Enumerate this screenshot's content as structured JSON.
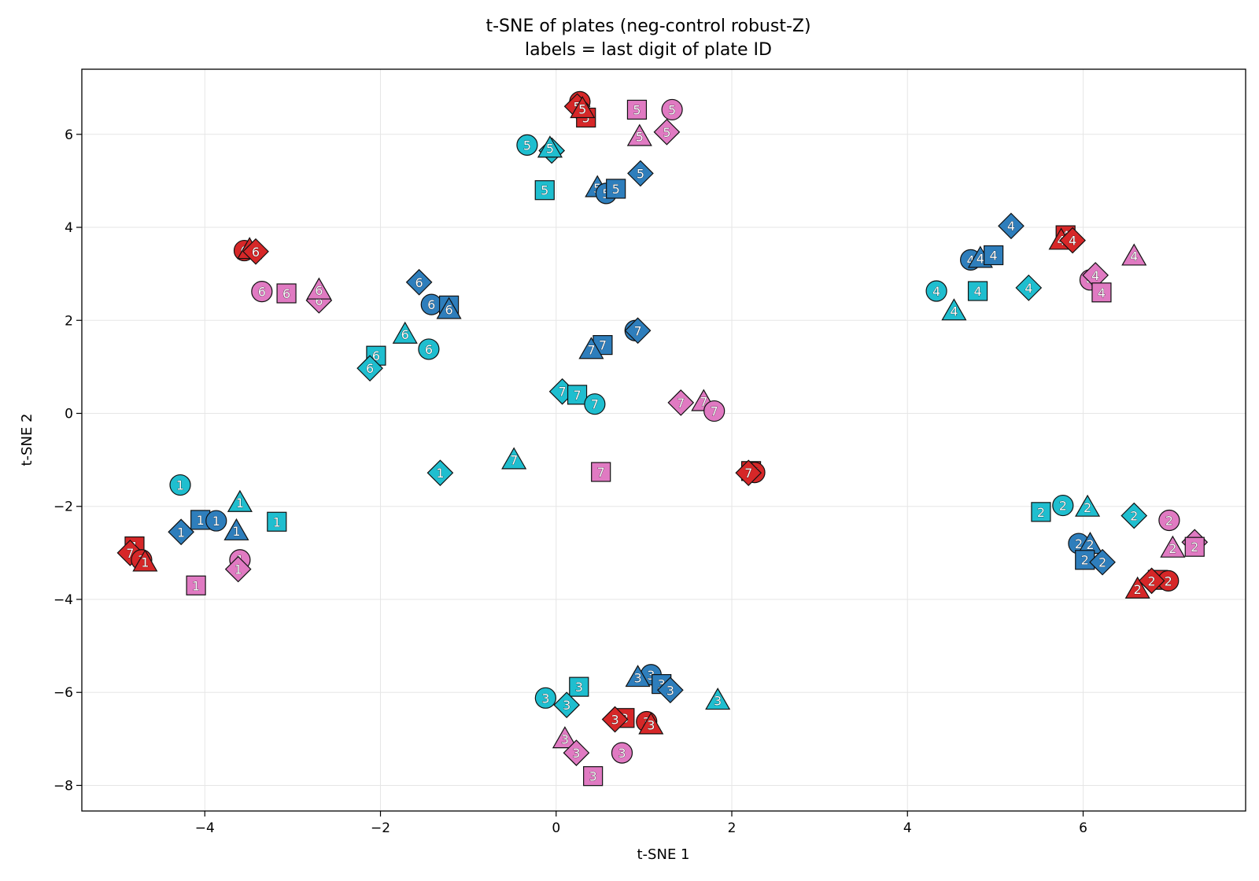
{
  "chart_data": {
    "type": "scatter",
    "title": "t-SNE of plates (neg-control robust-Z)",
    "subtitle": "labels = last digit of plate ID",
    "xlabel": "t-SNE 1",
    "ylabel": "t-SNE 2",
    "xlim": [
      -5.4,
      7.85
    ],
    "ylim": [
      -8.55,
      7.4
    ],
    "xticks": [
      -4,
      -2,
      0,
      2,
      4,
      6
    ],
    "yticks": [
      -8,
      -6,
      -4,
      -2,
      0,
      2,
      4,
      6
    ],
    "grid": true,
    "colors": {
      "red": "#d62728",
      "blue": "#2e7ebc",
      "cyan": "#1fbecf",
      "pink": "#e07ac2"
    },
    "points": [
      {
        "x": 0.27,
        "y": 6.7,
        "label": "5",
        "color": "red",
        "marker": "circle"
      },
      {
        "x": 0.24,
        "y": 6.6,
        "label": "5",
        "color": "red",
        "marker": "diamond"
      },
      {
        "x": 0.34,
        "y": 6.36,
        "label": "5",
        "color": "red",
        "marker": "square"
      },
      {
        "x": 0.3,
        "y": 6.55,
        "label": "5",
        "color": "red",
        "marker": "triangle"
      },
      {
        "x": 0.92,
        "y": 6.53,
        "label": "5",
        "color": "pink",
        "marker": "square"
      },
      {
        "x": 1.32,
        "y": 6.53,
        "label": "5",
        "color": "pink",
        "marker": "circle"
      },
      {
        "x": 1.26,
        "y": 6.05,
        "label": "5",
        "color": "pink",
        "marker": "diamond"
      },
      {
        "x": 0.95,
        "y": 5.95,
        "label": "5",
        "color": "pink",
        "marker": "triangle"
      },
      {
        "x": -0.33,
        "y": 5.77,
        "label": "5",
        "color": "cyan",
        "marker": "circle"
      },
      {
        "x": -0.05,
        "y": 5.65,
        "label": "5",
        "color": "cyan",
        "marker": "diamond"
      },
      {
        "x": -0.07,
        "y": 5.7,
        "label": "5",
        "color": "cyan",
        "marker": "triangle"
      },
      {
        "x": -0.13,
        "y": 4.8,
        "label": "5",
        "color": "cyan",
        "marker": "square"
      },
      {
        "x": 0.96,
        "y": 5.16,
        "label": "5",
        "color": "blue",
        "marker": "diamond"
      },
      {
        "x": 0.47,
        "y": 4.85,
        "label": "5",
        "color": "blue",
        "marker": "triangle"
      },
      {
        "x": 0.57,
        "y": 4.73,
        "label": "5",
        "color": "blue",
        "marker": "circle"
      },
      {
        "x": 0.68,
        "y": 4.83,
        "label": "5",
        "color": "blue",
        "marker": "square"
      },
      {
        "x": 5.18,
        "y": 4.03,
        "label": "4",
        "color": "blue",
        "marker": "diamond"
      },
      {
        "x": 4.72,
        "y": 3.3,
        "label": "4",
        "color": "blue",
        "marker": "circle"
      },
      {
        "x": 4.83,
        "y": 3.33,
        "label": "4",
        "color": "blue",
        "marker": "triangle"
      },
      {
        "x": 4.98,
        "y": 3.4,
        "label": "4",
        "color": "blue",
        "marker": "square"
      },
      {
        "x": 5.8,
        "y": 3.83,
        "label": "4",
        "color": "red",
        "marker": "square"
      },
      {
        "x": 5.75,
        "y": 3.72,
        "label": "4",
        "color": "red",
        "marker": "triangle"
      },
      {
        "x": 5.88,
        "y": 3.72,
        "label": "4",
        "color": "red",
        "marker": "diamond"
      },
      {
        "x": 6.58,
        "y": 3.38,
        "label": "4",
        "color": "pink",
        "marker": "triangle"
      },
      {
        "x": 6.08,
        "y": 2.87,
        "label": "4",
        "color": "pink",
        "marker": "circle"
      },
      {
        "x": 6.14,
        "y": 2.97,
        "label": "4",
        "color": "pink",
        "marker": "diamond"
      },
      {
        "x": 6.21,
        "y": 2.6,
        "label": "4",
        "color": "pink",
        "marker": "square"
      },
      {
        "x": 4.33,
        "y": 2.63,
        "label": "4",
        "color": "cyan",
        "marker": "circle"
      },
      {
        "x": 4.8,
        "y": 2.63,
        "label": "4",
        "color": "cyan",
        "marker": "square"
      },
      {
        "x": 5.38,
        "y": 2.7,
        "label": "4",
        "color": "cyan",
        "marker": "diamond"
      },
      {
        "x": 4.53,
        "y": 2.2,
        "label": "4",
        "color": "cyan",
        "marker": "triangle"
      },
      {
        "x": -3.55,
        "y": 3.5,
        "label": "6",
        "color": "red",
        "marker": "circle"
      },
      {
        "x": -3.49,
        "y": 3.52,
        "label": "6",
        "color": "red",
        "marker": "triangle"
      },
      {
        "x": -3.42,
        "y": 3.48,
        "label": "6",
        "color": "red",
        "marker": "diamond"
      },
      {
        "x": -3.35,
        "y": 2.62,
        "label": "6",
        "color": "pink",
        "marker": "circle"
      },
      {
        "x": -3.07,
        "y": 2.58,
        "label": "6",
        "color": "pink",
        "marker": "square"
      },
      {
        "x": -2.7,
        "y": 2.43,
        "label": "6",
        "color": "pink",
        "marker": "diamond"
      },
      {
        "x": -2.7,
        "y": 2.65,
        "label": "6",
        "color": "pink",
        "marker": "triangle"
      },
      {
        "x": -1.56,
        "y": 2.82,
        "label": "6",
        "color": "blue",
        "marker": "diamond"
      },
      {
        "x": -1.42,
        "y": 2.34,
        "label": "6",
        "color": "blue",
        "marker": "circle"
      },
      {
        "x": -1.22,
        "y": 2.32,
        "label": "6",
        "color": "blue",
        "marker": "square"
      },
      {
        "x": -1.22,
        "y": 2.23,
        "label": "6",
        "color": "blue",
        "marker": "triangle"
      },
      {
        "x": -1.72,
        "y": 1.7,
        "label": "6",
        "color": "cyan",
        "marker": "triangle"
      },
      {
        "x": -1.45,
        "y": 1.38,
        "label": "6",
        "color": "cyan",
        "marker": "circle"
      },
      {
        "x": -2.05,
        "y": 1.24,
        "label": "6",
        "color": "cyan",
        "marker": "square"
      },
      {
        "x": -2.12,
        "y": 0.97,
        "label": "6",
        "color": "cyan",
        "marker": "diamond"
      },
      {
        "x": 0.9,
        "y": 1.78,
        "label": "7",
        "color": "blue",
        "marker": "circle"
      },
      {
        "x": 0.93,
        "y": 1.78,
        "label": "7",
        "color": "blue",
        "marker": "diamond"
      },
      {
        "x": 0.53,
        "y": 1.47,
        "label": "7",
        "color": "blue",
        "marker": "square"
      },
      {
        "x": 0.4,
        "y": 1.37,
        "label": "7",
        "color": "blue",
        "marker": "triangle"
      },
      {
        "x": 0.07,
        "y": 0.47,
        "label": "7",
        "color": "cyan",
        "marker": "diamond"
      },
      {
        "x": 0.24,
        "y": 0.4,
        "label": "7",
        "color": "cyan",
        "marker": "square"
      },
      {
        "x": 0.44,
        "y": 0.2,
        "label": "7",
        "color": "cyan",
        "marker": "circle"
      },
      {
        "x": 1.42,
        "y": 0.23,
        "label": "7",
        "color": "pink",
        "marker": "diamond"
      },
      {
        "x": 1.68,
        "y": 0.25,
        "label": "7",
        "color": "pink",
        "marker": "triangle"
      },
      {
        "x": 1.8,
        "y": 0.05,
        "label": "7",
        "color": "pink",
        "marker": "circle"
      },
      {
        "x": -0.48,
        "y": -1.0,
        "label": "7",
        "color": "cyan",
        "marker": "triangle"
      },
      {
        "x": 0.51,
        "y": -1.26,
        "label": "7",
        "color": "pink",
        "marker": "square"
      },
      {
        "x": 2.22,
        "y": -1.24,
        "label": "7",
        "color": "red",
        "marker": "square"
      },
      {
        "x": 2.26,
        "y": -1.27,
        "label": "7",
        "color": "red",
        "marker": "circle"
      },
      {
        "x": 2.19,
        "y": -1.28,
        "label": "7",
        "color": "red",
        "marker": "diamond"
      },
      {
        "x": -1.32,
        "y": -1.28,
        "label": "1",
        "color": "cyan",
        "marker": "diamond"
      },
      {
        "x": -4.28,
        "y": -1.54,
        "label": "1",
        "color": "cyan",
        "marker": "circle"
      },
      {
        "x": -3.6,
        "y": -1.92,
        "label": "1",
        "color": "cyan",
        "marker": "triangle"
      },
      {
        "x": -3.18,
        "y": -2.33,
        "label": "1",
        "color": "cyan",
        "marker": "square"
      },
      {
        "x": -4.05,
        "y": -2.29,
        "label": "1",
        "color": "blue",
        "marker": "square"
      },
      {
        "x": -3.87,
        "y": -2.31,
        "label": "1",
        "color": "blue",
        "marker": "circle"
      },
      {
        "x": -4.27,
        "y": -2.55,
        "label": "1",
        "color": "blue",
        "marker": "diamond"
      },
      {
        "x": -3.64,
        "y": -2.53,
        "label": "1",
        "color": "blue",
        "marker": "triangle"
      },
      {
        "x": -4.8,
        "y": -2.86,
        "label": "1",
        "color": "red",
        "marker": "square"
      },
      {
        "x": -4.85,
        "y": -3.0,
        "label": "7",
        "color": "red",
        "marker": "diamond"
      },
      {
        "x": -4.72,
        "y": -3.15,
        "label": "1",
        "color": "red",
        "marker": "circle"
      },
      {
        "x": -4.68,
        "y": -3.2,
        "label": "1",
        "color": "red",
        "marker": "triangle"
      },
      {
        "x": -3.6,
        "y": -3.15,
        "label": "1",
        "color": "pink",
        "marker": "circle"
      },
      {
        "x": -3.62,
        "y": -3.35,
        "label": "1",
        "color": "pink",
        "marker": "diamond"
      },
      {
        "x": -4.1,
        "y": -3.7,
        "label": "1",
        "color": "pink",
        "marker": "square"
      },
      {
        "x": 5.77,
        "y": -1.98,
        "label": "2",
        "color": "cyan",
        "marker": "circle"
      },
      {
        "x": 6.05,
        "y": -2.02,
        "label": "2",
        "color": "cyan",
        "marker": "triangle"
      },
      {
        "x": 5.52,
        "y": -2.12,
        "label": "2",
        "color": "cyan",
        "marker": "square"
      },
      {
        "x": 6.58,
        "y": -2.2,
        "label": "2",
        "color": "cyan",
        "marker": "diamond"
      },
      {
        "x": 6.98,
        "y": -2.3,
        "label": "2",
        "color": "pink",
        "marker": "circle"
      },
      {
        "x": 7.27,
        "y": -2.77,
        "label": "2",
        "color": "pink",
        "marker": "diamond"
      },
      {
        "x": 7.27,
        "y": -2.87,
        "label": "2",
        "color": "pink",
        "marker": "square"
      },
      {
        "x": 7.02,
        "y": -2.9,
        "label": "2",
        "color": "pink",
        "marker": "triangle"
      },
      {
        "x": 5.95,
        "y": -2.8,
        "label": "2",
        "color": "blue",
        "marker": "circle"
      },
      {
        "x": 6.08,
        "y": -2.82,
        "label": "2",
        "color": "blue",
        "marker": "triangle"
      },
      {
        "x": 6.02,
        "y": -3.15,
        "label": "2",
        "color": "blue",
        "marker": "square"
      },
      {
        "x": 6.22,
        "y": -3.2,
        "label": "2",
        "color": "blue",
        "marker": "diamond"
      },
      {
        "x": 6.85,
        "y": -3.58,
        "label": "2",
        "color": "red",
        "marker": "square"
      },
      {
        "x": 6.97,
        "y": -3.6,
        "label": "2",
        "color": "red",
        "marker": "circle"
      },
      {
        "x": 6.78,
        "y": -3.6,
        "label": "2",
        "color": "red",
        "marker": "diamond"
      },
      {
        "x": 6.62,
        "y": -3.78,
        "label": "2",
        "color": "red",
        "marker": "triangle"
      },
      {
        "x": 1.08,
        "y": -5.62,
        "label": "3",
        "color": "blue",
        "marker": "circle"
      },
      {
        "x": 0.93,
        "y": -5.68,
        "label": "3",
        "color": "blue",
        "marker": "triangle"
      },
      {
        "x": 1.2,
        "y": -5.82,
        "label": "3",
        "color": "blue",
        "marker": "square"
      },
      {
        "x": 1.3,
        "y": -5.95,
        "label": "3",
        "color": "blue",
        "marker": "diamond"
      },
      {
        "x": 0.26,
        "y": -5.88,
        "label": "3",
        "color": "cyan",
        "marker": "square"
      },
      {
        "x": -0.12,
        "y": -6.12,
        "label": "3",
        "color": "cyan",
        "marker": "circle"
      },
      {
        "x": 0.12,
        "y": -6.27,
        "label": "3",
        "color": "cyan",
        "marker": "diamond"
      },
      {
        "x": 1.84,
        "y": -6.17,
        "label": "3",
        "color": "cyan",
        "marker": "triangle"
      },
      {
        "x": 0.78,
        "y": -6.55,
        "label": "3",
        "color": "red",
        "marker": "square"
      },
      {
        "x": 0.67,
        "y": -6.58,
        "label": "3",
        "color": "red",
        "marker": "diamond"
      },
      {
        "x": 1.03,
        "y": -6.63,
        "label": "3",
        "color": "red",
        "marker": "circle"
      },
      {
        "x": 1.08,
        "y": -6.7,
        "label": "3",
        "color": "red",
        "marker": "triangle"
      },
      {
        "x": 0.1,
        "y": -7.0,
        "label": "3",
        "color": "pink",
        "marker": "triangle"
      },
      {
        "x": 0.23,
        "y": -7.3,
        "label": "3",
        "color": "pink",
        "marker": "diamond"
      },
      {
        "x": 0.75,
        "y": -7.3,
        "label": "3",
        "color": "pink",
        "marker": "circle"
      },
      {
        "x": 0.42,
        "y": -7.8,
        "label": "3",
        "color": "pink",
        "marker": "square"
      }
    ]
  }
}
